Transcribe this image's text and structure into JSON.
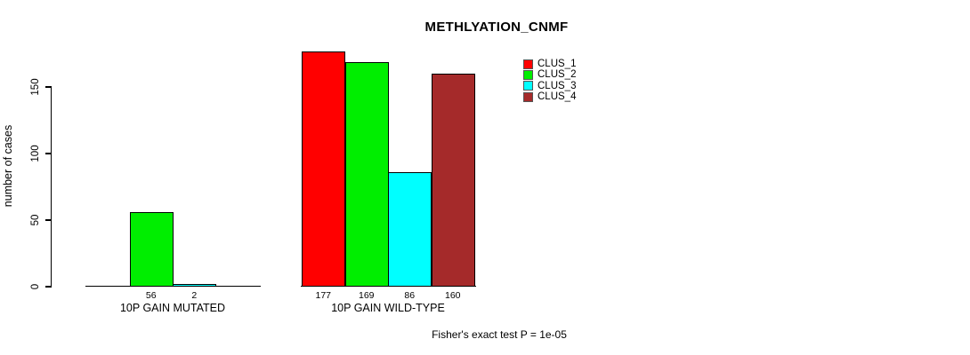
{
  "chart_data": {
    "type": "bar",
    "title": "METHLYATION_CNMF",
    "xlabel": "",
    "ylabel": "number of cases",
    "yticks": [
      0,
      50,
      100,
      150
    ],
    "ylim": [
      0,
      185
    ],
    "grid": false,
    "legend_position": "top-right",
    "legend": [
      {
        "label": "CLUS_1",
        "color": "#ff0000"
      },
      {
        "label": "CLUS_2",
        "color": "#00ee00"
      },
      {
        "label": "CLUS_3",
        "color": "#00ffff"
      },
      {
        "label": "CLUS_4",
        "color": "#a52a2a"
      }
    ],
    "categories": [
      "10P GAIN MUTATED",
      "10P GAIN WILD-TYPE"
    ],
    "groups": [
      {
        "label": "10P GAIN MUTATED",
        "series": [
          "CLUS_1",
          "CLUS_2",
          "CLUS_3",
          "CLUS_4"
        ],
        "values": [
          0,
          56,
          2,
          0
        ],
        "value_labels": [
          "",
          "56",
          "2",
          ""
        ]
      },
      {
        "label": "10P GAIN WILD-TYPE",
        "series": [
          "CLUS_1",
          "CLUS_2",
          "CLUS_3",
          "CLUS_4"
        ],
        "values": [
          177,
          169,
          86,
          160
        ],
        "value_labels": [
          "177",
          "169",
          "86",
          "160"
        ]
      }
    ],
    "footnote": "Fisher's exact test P = 1e-05"
  }
}
